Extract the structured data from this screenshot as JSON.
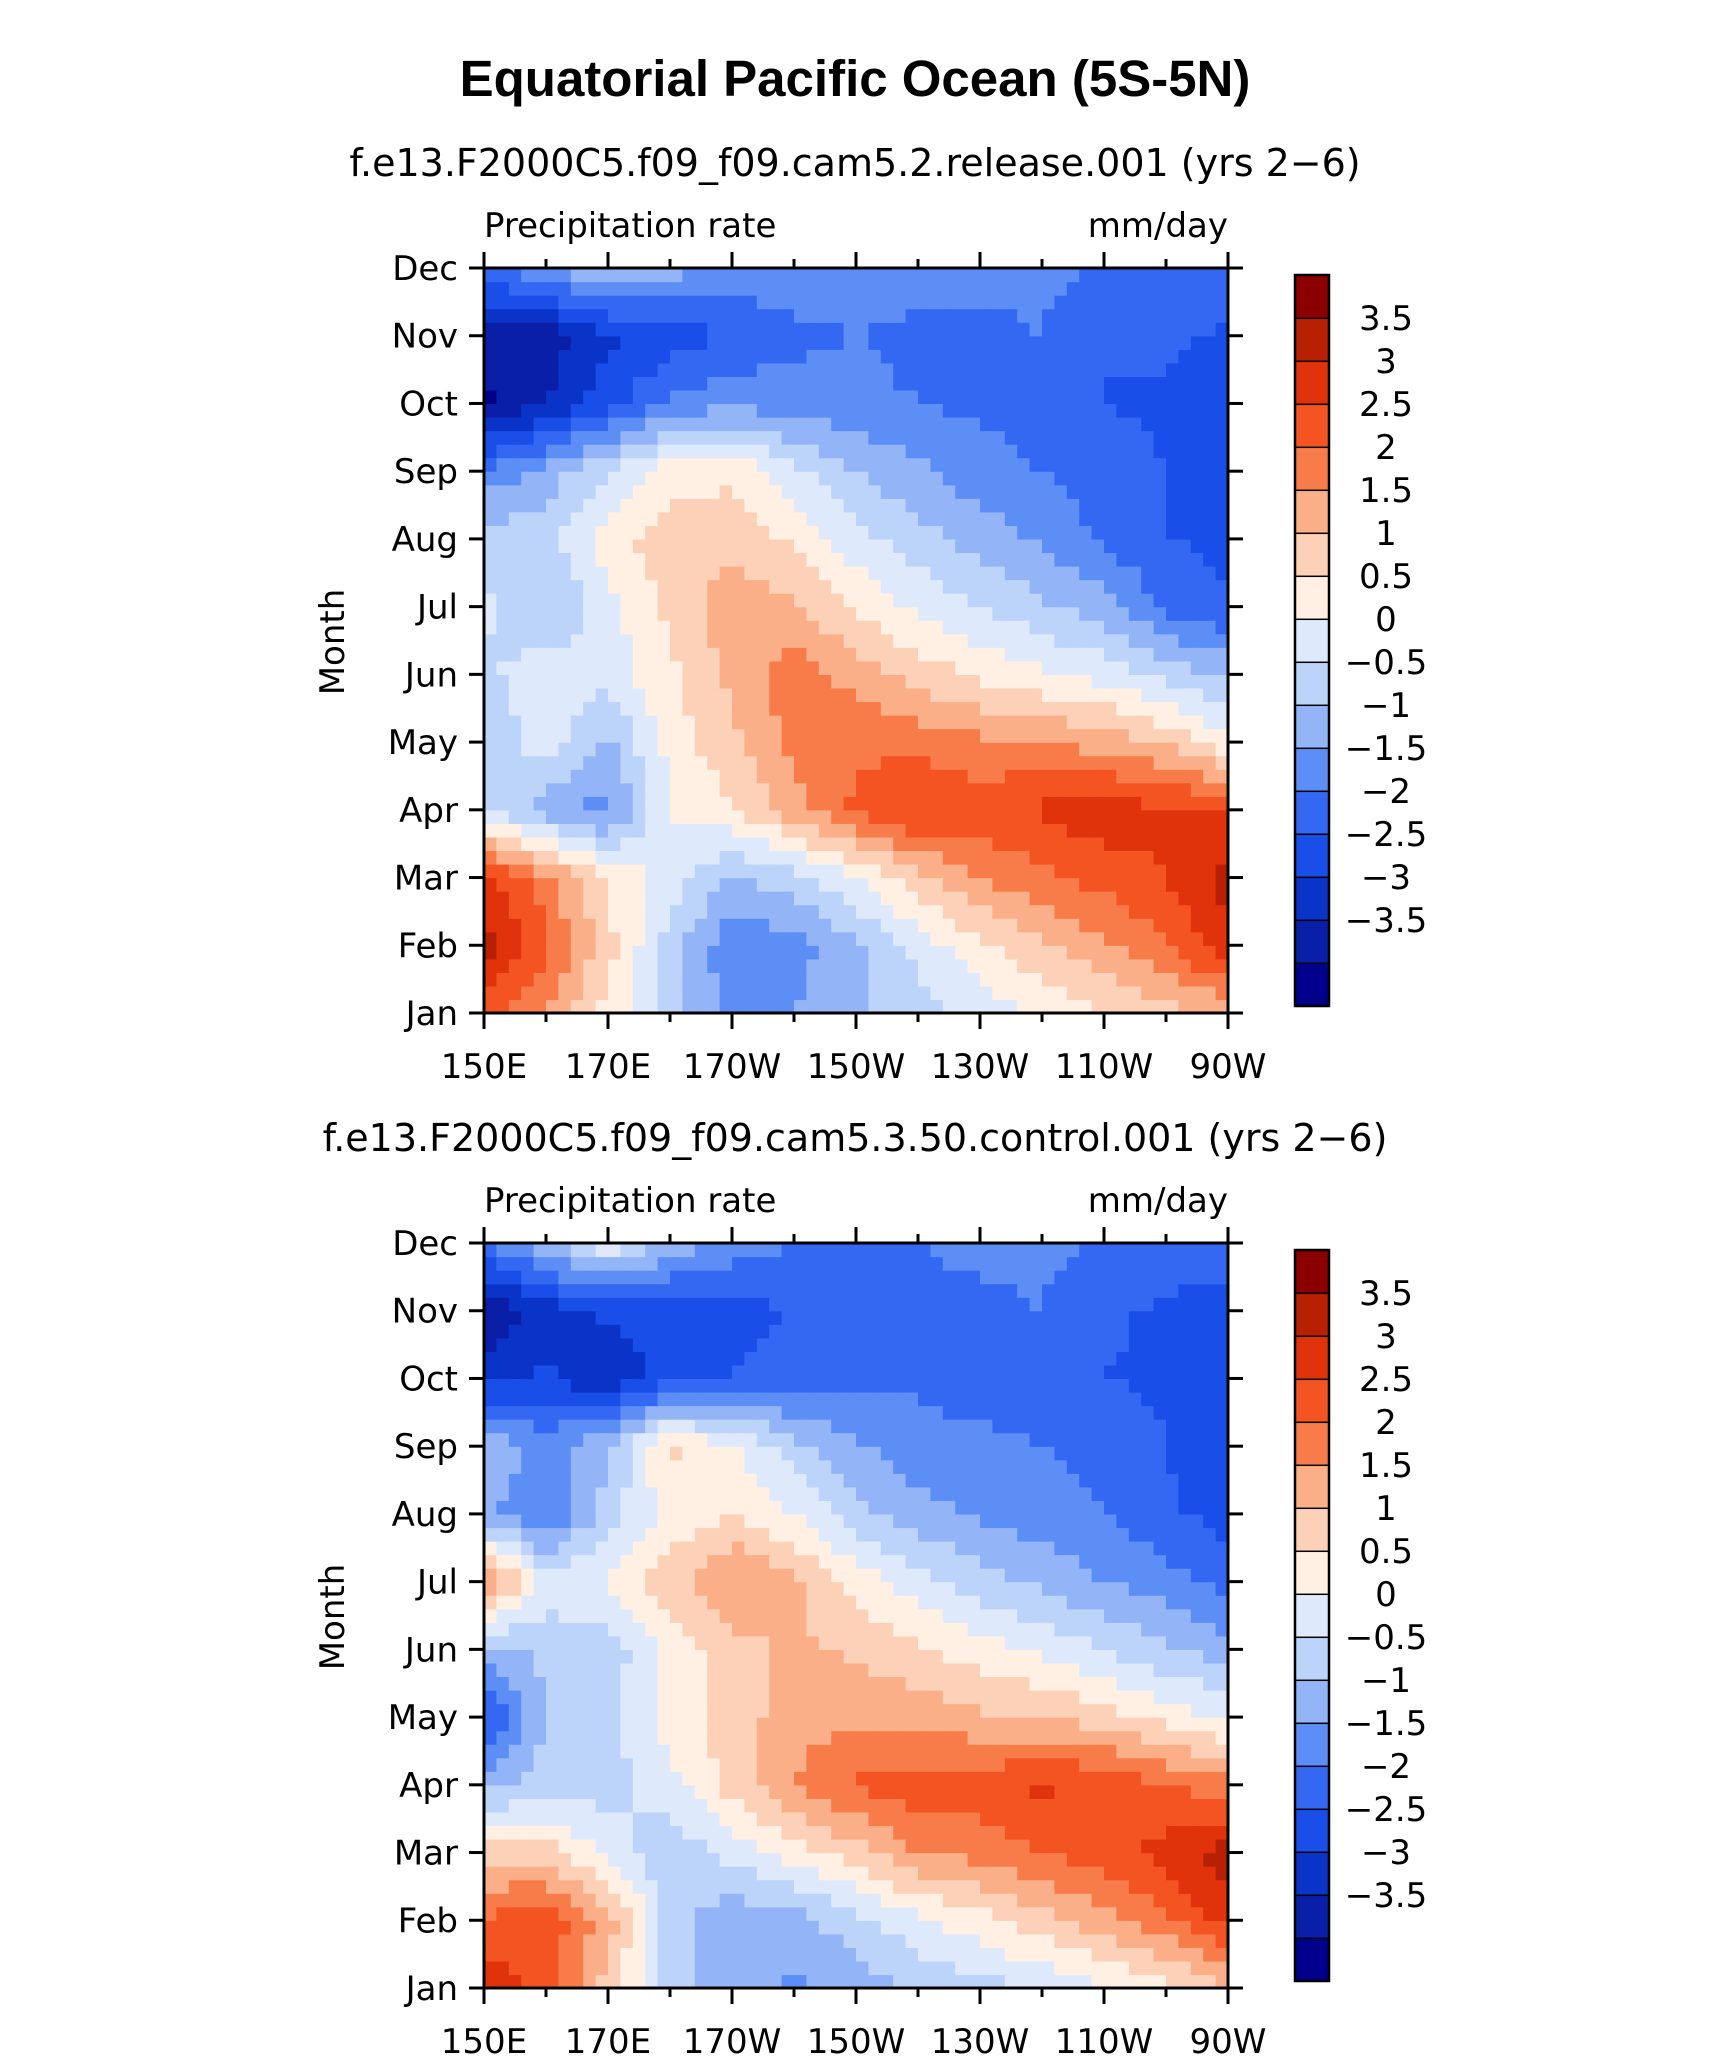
{
  "figure_title": "Equatorial Pacific Ocean (5S-5N)",
  "chart_data": [
    {
      "type": "heatmap",
      "title": "f.e13.F2000C5.f09_f09.cam5.2.release.001 (yrs 2−6)",
      "left_label": "Precipitation rate",
      "right_label": "mm/day",
      "ylabel": "Month",
      "x_ticks": [
        "150E",
        "170E",
        "170W",
        "150W",
        "130W",
        "110W",
        "90W"
      ],
      "y_ticks": [
        "Jan",
        "Feb",
        "Mar",
        "Apr",
        "May",
        "Jun",
        "Jul",
        "Aug",
        "Sep",
        "Oct",
        "Nov",
        "Dec"
      ],
      "x_values": [
        150,
        160,
        170,
        180,
        190,
        200,
        210,
        220,
        230,
        240,
        250,
        260,
        270
      ],
      "z_values": [
        [
          2.8,
          2.0,
          0.8,
          -0.3,
          -1.2,
          -1.0,
          -0.6,
          -0.3,
          0.2,
          0.6,
          1.0,
          1.3,
          1.6
        ],
        [
          3.7,
          2.6,
          1.2,
          -0.2,
          -1.4,
          -1.2,
          -0.6,
          0.2,
          0.9,
          1.4,
          1.9,
          2.5,
          3.4
        ],
        [
          3.2,
          2.2,
          0.9,
          0.3,
          -0.6,
          -0.2,
          0.5,
          1.3,
          2.0,
          2.4,
          2.7,
          3.0,
          3.7
        ],
        [
          0.1,
          -0.8,
          -1.2,
          0.5,
          0.9,
          1.8,
          2.6,
          3.1,
          2.8,
          3.1,
          3.3,
          3.1,
          3.0
        ],
        [
          -0.4,
          0.3,
          -0.6,
          0.7,
          1.4,
          2.2,
          2.4,
          2.3,
          2.1,
          2.0,
          1.8,
          1.4,
          0.7
        ],
        [
          -0.1,
          0.3,
          0.2,
          0.9,
          1.6,
          2.3,
          1.8,
          1.3,
          0.9,
          0.6,
          0.3,
          -0.2,
          -0.6
        ],
        [
          0.1,
          -0.6,
          0.3,
          1.1,
          1.9,
          1.6,
          0.9,
          0.4,
          0.0,
          -0.4,
          -0.8,
          -1.6,
          -2.0
        ],
        [
          -0.2,
          -0.2,
          0.8,
          1.3,
          1.3,
          0.9,
          0.2,
          -0.3,
          -0.7,
          -1.1,
          -1.6,
          -2.0,
          -2.1
        ],
        [
          -1.4,
          -0.8,
          0.0,
          0.8,
          0.9,
          0.2,
          -0.5,
          -0.9,
          -1.3,
          -1.5,
          -1.7,
          -2.0,
          -2.2
        ],
        [
          -3.6,
          -3.0,
          -2.2,
          -1.4,
          -1.1,
          -1.3,
          -1.4,
          -1.5,
          -1.6,
          -1.7,
          -2.0,
          -2.1,
          -2.3
        ],
        [
          -3.2,
          -3.3,
          -2.6,
          -2.3,
          -2.0,
          -1.6,
          -1.5,
          -1.6,
          -1.6,
          -1.5,
          -2.0,
          -1.9,
          -2.1
        ],
        [
          -1.8,
          -1.0,
          -0.5,
          -0.8,
          -1.1,
          -1.2,
          -1.3,
          -1.3,
          -1.4,
          -1.4,
          -1.5,
          -1.5,
          -1.6
        ]
      ],
      "z_levels": [
        -3.5,
        -3,
        -2.5,
        -2,
        -1.5,
        -1,
        -0.5,
        0,
        0.5,
        1,
        1.5,
        2,
        2.5,
        3,
        3.5
      ],
      "colorbar_labels": [
        "3.5",
        "3",
        "2.5",
        "2",
        "1.5",
        "1",
        "0.5",
        "0",
        "−0.5",
        "−1",
        "−1.5",
        "−2",
        "−2.5",
        "−3",
        "−3.5"
      ]
    },
    {
      "type": "heatmap",
      "title": "f.e13.F2000C5.f09_f09.cam5.3.50.control.001 (yrs 2−6)",
      "left_label": "Precipitation rate",
      "right_label": "mm/day",
      "ylabel": "Month",
      "x_ticks": [
        "150E",
        "170E",
        "170W",
        "150W",
        "130W",
        "110W",
        "90W"
      ],
      "y_ticks": [
        "Jan",
        "Feb",
        "Mar",
        "Apr",
        "May",
        "Jun",
        "Jul",
        "Aug",
        "Sep",
        "Oct",
        "Nov",
        "Dec"
      ],
      "x_values": [
        150,
        160,
        170,
        180,
        190,
        200,
        210,
        220,
        230,
        240,
        250,
        260,
        270
      ],
      "z_values": [
        [
          3.4,
          2.8,
          1.2,
          -0.2,
          -0.8,
          -1.1,
          -0.8,
          -0.4,
          -0.2,
          0.1,
          0.4,
          0.8,
          1.5
        ],
        [
          2.6,
          2.9,
          1.8,
          -0.3,
          -0.9,
          -0.7,
          -0.2,
          0.4,
          0.8,
          1.3,
          1.8,
          2.4,
          3.2
        ],
        [
          1.2,
          1.3,
          0.3,
          -0.4,
          0.2,
          0.7,
          1.3,
          2.0,
          2.2,
          2.5,
          2.8,
          3.2,
          3.8
        ],
        [
          -0.7,
          -0.3,
          -0.2,
          0.3,
          1.2,
          2.0,
          2.6,
          2.8,
          2.8,
          3.1,
          2.9,
          2.5,
          2.2
        ],
        [
          -2.2,
          -0.4,
          -0.2,
          0.8,
          1.2,
          1.8,
          1.9,
          1.8,
          1.6,
          1.5,
          1.2,
          0.8,
          0.4
        ],
        [
          -0.8,
          -0.4,
          -0.3,
          0.6,
          1.3,
          1.6,
          1.4,
          1.1,
          0.7,
          0.4,
          0.0,
          -0.4,
          -0.8
        ],
        [
          2.2,
          0.3,
          0.6,
          1.3,
          2.1,
          1.6,
          0.8,
          0.2,
          -0.3,
          -0.6,
          -1.0,
          -1.3,
          -1.7
        ],
        [
          -0.8,
          -1.6,
          -0.2,
          0.6,
          1.0,
          0.5,
          -0.3,
          -0.8,
          -1.1,
          -1.3,
          -1.5,
          -1.9,
          -2.2
        ],
        [
          -0.6,
          -1.2,
          -0.6,
          1.2,
          0.6,
          -0.3,
          -0.9,
          -1.3,
          -1.4,
          -1.5,
          -1.6,
          -2.0,
          -2.4
        ],
        [
          -2.6,
          -2.4,
          -3.0,
          -2.2,
          -2.0,
          -1.8,
          -1.6,
          -1.6,
          -1.7,
          -1.8,
          -2.0,
          -2.1,
          -2.3
        ],
        [
          -3.5,
          -2.8,
          -2.4,
          -2.3,
          -2.2,
          -2.0,
          -1.7,
          -1.6,
          -1.6,
          -1.5,
          -1.9,
          -2.1,
          -2.3
        ],
        [
          -1.6,
          -0.6,
          0.4,
          -0.7,
          -1.2,
          -1.5,
          -1.5,
          -1.5,
          -1.4,
          -1.4,
          -1.5,
          -1.6,
          -1.7
        ]
      ],
      "z_levels": [
        -3.5,
        -3,
        -2.5,
        -2,
        -1.5,
        -1,
        -0.5,
        0,
        0.5,
        1,
        1.5,
        2,
        2.5,
        3,
        3.5
      ],
      "colorbar_labels": [
        "3.5",
        "3",
        "2.5",
        "2",
        "1.5",
        "1",
        "0.5",
        "0",
        "−0.5",
        "−1",
        "−1.5",
        "−2",
        "−2.5",
        "−3",
        "−3.5"
      ]
    }
  ],
  "palette": [
    "#00008b",
    "#0a1fa8",
    "#0a34c8",
    "#1a4ee8",
    "#3468f2",
    "#5d8ef5",
    "#93b5f7",
    "#bcd3fa",
    "#deeafc",
    "#fff0e3",
    "#fcd1b8",
    "#fbaf88",
    "#f87c4a",
    "#f45322",
    "#e0330b",
    "#b82004",
    "#8a0000"
  ]
}
